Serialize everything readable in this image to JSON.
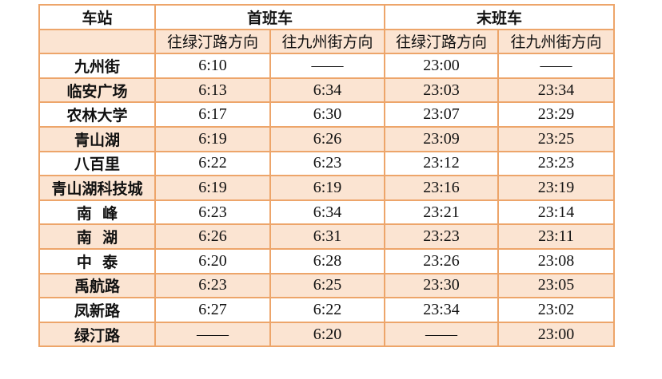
{
  "header": {
    "station": "车站",
    "first": "首班车",
    "last": "末班车",
    "dir1": "往绿汀路方向",
    "dir2": "往九州街方向"
  },
  "rows": [
    [
      "九州街",
      "6:10",
      "——",
      "23:00",
      "——"
    ],
    [
      "临安广场",
      "6:13",
      "6:34",
      "23:03",
      "23:34"
    ],
    [
      "农林大学",
      "6:17",
      "6:30",
      "23:07",
      "23:29"
    ],
    [
      "青山湖",
      "6:19",
      "6:26",
      "23:09",
      "23:25"
    ],
    [
      "八百里",
      "6:22",
      "6:23",
      "23:12",
      "23:23"
    ],
    [
      "青山湖科技城",
      "6:19",
      "6:19",
      "23:16",
      "23:19"
    ],
    [
      "南  峰",
      "6:23",
      "6:34",
      "23:21",
      "23:14"
    ],
    [
      "南  湖",
      "6:26",
      "6:31",
      "23:23",
      "23:11"
    ],
    [
      "中  泰",
      "6:20",
      "6:28",
      "23:26",
      "23:08"
    ],
    [
      "禹航路",
      "6:23",
      "6:25",
      "23:30",
      "23:05"
    ],
    [
      "凤新路",
      "6:27",
      "6:22",
      "23:34",
      "23:02"
    ],
    [
      "绿汀路",
      "——",
      "6:20",
      "——",
      "23:00"
    ]
  ],
  "colors": {
    "border": "#eda56a",
    "alt_fill": "#fbe4d2"
  }
}
